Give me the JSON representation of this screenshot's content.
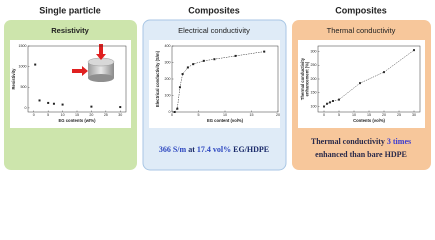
{
  "headings": [
    "Single particle",
    "Composites",
    "Composites"
  ],
  "chart_data": [
    {
      "type": "scatter",
      "title": "Resistivity",
      "xlabel": "EG contents (wt%)",
      "ylabel": "Resistivity",
      "x": [
        0.5,
        2,
        5,
        7,
        10,
        20,
        30
      ],
      "values": [
        1050,
        180,
        120,
        100,
        80,
        30,
        20
      ],
      "color": "#222222",
      "xlim": [
        -2,
        32
      ],
      "ylim": [
        -100,
        1500
      ],
      "xticks": [
        0,
        5,
        10,
        15,
        20,
        25,
        30
      ],
      "yticks": [
        0,
        500,
        1000,
        1500
      ]
    },
    {
      "type": "line",
      "title": "Electrical conductivity",
      "xlabel": "EG content (vol%)",
      "ylabel": "Electrical conductivity (S/m)",
      "x": [
        0.5,
        1,
        1.5,
        2,
        3,
        4,
        6,
        8,
        12,
        17.4
      ],
      "values": [
        0,
        20,
        150,
        230,
        270,
        290,
        310,
        320,
        340,
        366
      ],
      "color": "#222222",
      "dashed": true,
      "xlim": [
        0,
        20
      ],
      "ylim": [
        0,
        400
      ],
      "xticks": [
        0,
        5,
        10,
        15,
        20
      ],
      "yticks": [
        0,
        100,
        200,
        300,
        400
      ],
      "caption": [
        [
          {
            "text": "366 S/m",
            "color": "#2e48c0"
          },
          {
            "text": " at ",
            "color": "#1a2a6a"
          },
          {
            "text": "17.4 vol%",
            "color": "#2e48c0"
          },
          {
            "text": " EG/HDPE",
            "color": "#1a2a6a"
          }
        ]
      ]
    },
    {
      "type": "line",
      "title": "Thermal conductivity",
      "xlabel": "Contents (vol%)",
      "ylabel": [
        "Thermal conductivity",
        "enhancement (%)"
      ],
      "x": [
        0,
        1,
        2,
        3,
        5,
        12,
        20,
        30
      ],
      "values": [
        100,
        110,
        115,
        120,
        125,
        185,
        225,
        305
      ],
      "color": "#333333",
      "dashed": true,
      "xlim": [
        -2,
        32
      ],
      "ylim": [
        80,
        320
      ],
      "xticks": [
        0,
        5,
        10,
        15,
        20,
        25,
        30
      ],
      "yticks": [
        100,
        150,
        200,
        250,
        300
      ],
      "caption": [
        [
          {
            "text": "Thermal conductivity ",
            "color": "#2a2a4a"
          },
          {
            "text": "3 times",
            "color": "#3a3ad0"
          }
        ],
        [
          {
            "text": "enhanced than bare HDPE",
            "color": "#2a2a4a"
          }
        ]
      ]
    }
  ]
}
